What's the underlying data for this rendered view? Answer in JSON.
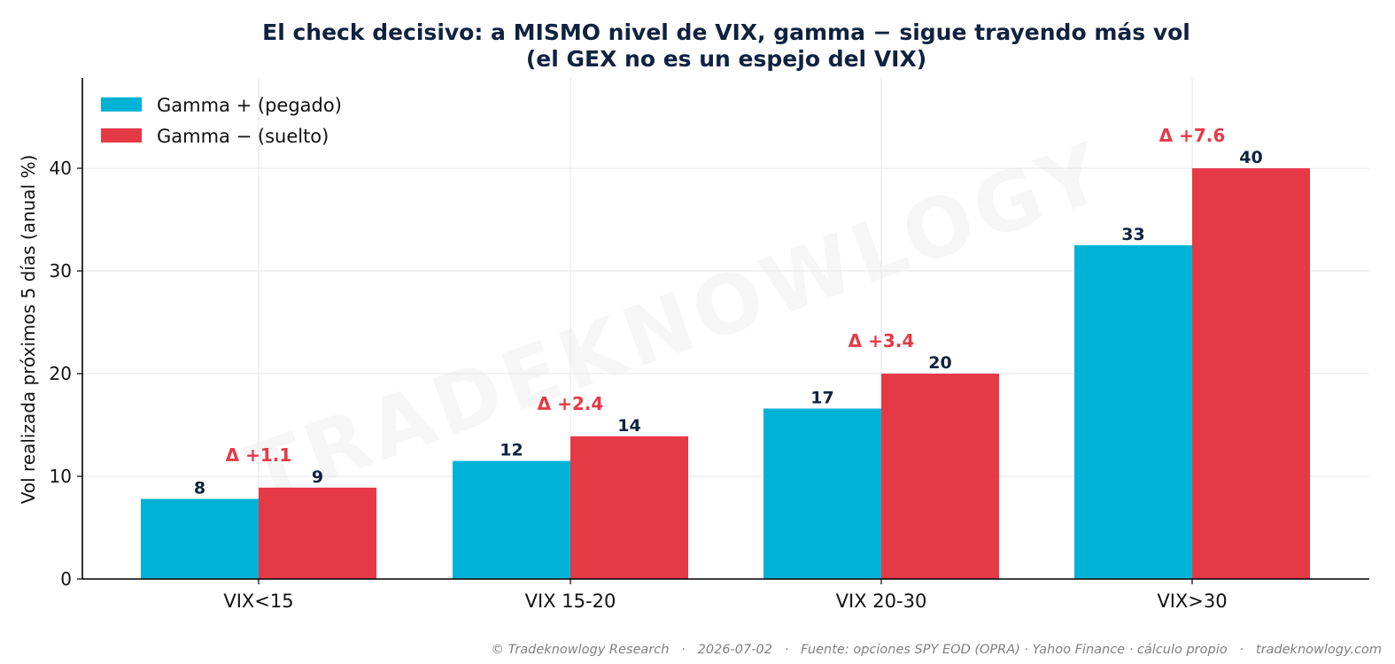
{
  "chart_data": {
    "type": "bar",
    "title_line1": "El check decisivo: a MISMO nivel de VIX, gamma − sigue trayendo más vol",
    "title_line2": "(el GEX no es un espejo del VIX)",
    "xlabel": "",
    "ylabel": "Vol realizada próximos 5 días (anual %)",
    "ylim": [
      0,
      48.8
    ],
    "yticks": [
      0,
      10,
      20,
      30,
      40
    ],
    "grid": true,
    "legend_position": "top-left",
    "categories": [
      "VIX<15",
      "VIX 15-20",
      "VIX 20-30",
      "VIX>30"
    ],
    "series": [
      {
        "name": "Gamma + (pegado)",
        "color": "#00b2d6",
        "values": [
          7.8,
          11.5,
          16.6,
          32.5
        ],
        "labels": [
          "8",
          "12",
          "17",
          "33"
        ]
      },
      {
        "name": "Gamma − (suelto)",
        "color": "#e63946",
        "values": [
          8.9,
          13.9,
          20.0,
          40.0
        ],
        "labels": [
          "9",
          "14",
          "20",
          "40"
        ]
      }
    ],
    "deltas": [
      "Δ +1.1",
      "Δ +2.4",
      "Δ +3.4",
      "Δ +7.6"
    ],
    "delta_color": "#e63946",
    "watermark": "TRADEKNOWLOGY",
    "footer": "© Tradeknowlogy Research   ·   2026-07-02   ·   Fuente: opciones SPY EOD (OPRA) · Yahoo Finance · cálculo propio   ·   tradeknowlogy.com"
  }
}
